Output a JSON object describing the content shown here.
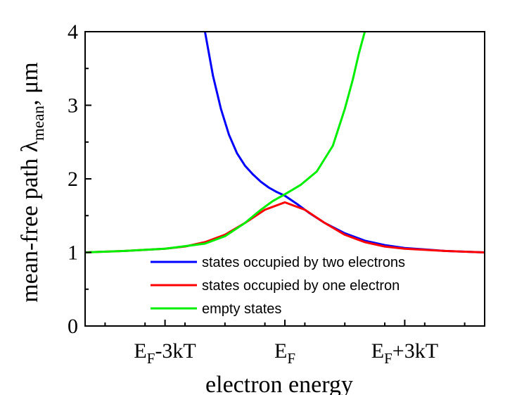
{
  "chart_data": {
    "type": "line",
    "xlabel": "electron energy",
    "ylabel": "mean-free path λ",
    "ylabel_sub": "mean",
    "ylabel_suffix": ", μm",
    "ylim": [
      0,
      4
    ],
    "y_ticks": [
      "0",
      "1",
      "2",
      "3",
      "4"
    ],
    "x_range_kT": [
      -5,
      5
    ],
    "x_ticks": [
      {
        "kT": -3,
        "main": "E",
        "sub": "F",
        "suffix": "-3kT"
      },
      {
        "kT": 0,
        "main": "E",
        "sub": "F",
        "suffix": ""
      },
      {
        "kT": 3,
        "main": "E",
        "sub": "F",
        "suffix": "+3kT"
      }
    ],
    "legend_position": "bottom-right",
    "grid": false,
    "series": [
      {
        "name": "states occupied by two electrons",
        "color": "#0000ff",
        "x": [
          -2.0,
          -1.8,
          -1.6,
          -1.4,
          -1.2,
          -1.0,
          -0.8,
          -0.6,
          -0.4,
          -0.2,
          0.0,
          0.3,
          0.6,
          1.0,
          1.5,
          2.0,
          2.5,
          3.0,
          3.5,
          4.0,
          5.0
        ],
        "y": [
          4.0,
          3.4,
          2.95,
          2.6,
          2.35,
          2.18,
          2.06,
          1.96,
          1.88,
          1.82,
          1.77,
          1.66,
          1.54,
          1.4,
          1.26,
          1.16,
          1.1,
          1.06,
          1.04,
          1.02,
          1.0
        ]
      },
      {
        "name": "states occupied by one electron",
        "color": "#ff0000",
        "x": [
          -5.0,
          -4.0,
          -3.0,
          -2.5,
          -2.0,
          -1.5,
          -1.0,
          -0.5,
          0.0,
          0.5,
          1.0,
          1.5,
          2.0,
          2.5,
          3.0,
          4.0,
          5.0
        ],
        "y": [
          1.0,
          1.02,
          1.05,
          1.08,
          1.14,
          1.24,
          1.4,
          1.58,
          1.68,
          1.58,
          1.4,
          1.24,
          1.14,
          1.08,
          1.05,
          1.02,
          1.0
        ]
      },
      {
        "name": "empty states",
        "color": "#00ee00",
        "x": [
          -5.0,
          -4.0,
          -3.0,
          -2.0,
          -1.5,
          -1.0,
          -0.6,
          -0.3,
          0.0,
          0.4,
          0.8,
          1.2,
          1.5,
          1.7,
          1.85,
          2.0
        ],
        "y": [
          1.0,
          1.02,
          1.05,
          1.12,
          1.22,
          1.4,
          1.58,
          1.7,
          1.79,
          1.92,
          2.1,
          2.45,
          2.95,
          3.35,
          3.7,
          4.0
        ]
      }
    ]
  }
}
